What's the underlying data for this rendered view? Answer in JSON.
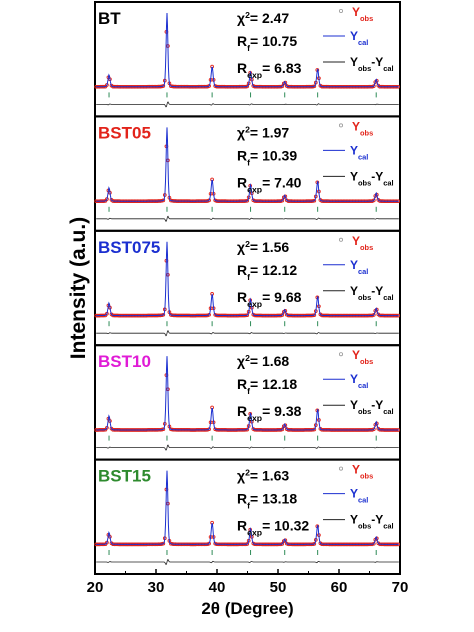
{
  "chart_data": {
    "type": "line",
    "xlabel": "2θ (Degree)",
    "ylabel": "Intensity (a.u.)",
    "xlim": [
      20,
      70
    ],
    "x_ticks": [
      "20",
      "30",
      "40",
      "50",
      "60",
      "70"
    ],
    "legend": [
      "Yobs",
      "Ycal",
      "Yobs-Ycal"
    ],
    "colors": {
      "obs": "#e2231a",
      "cal": "#1b2fd0",
      "diff": "#222222",
      "bragg": "#2e8b57",
      "BT": "#000000",
      "BST05": "#e2231a",
      "BST075": "#1b2fd0",
      "BST10": "#e01bd6",
      "BST15": "#2e8b2e"
    },
    "peak_positions_2theta": [
      22.3,
      31.8,
      39.2,
      45.5,
      51.1,
      56.5,
      66.1
    ],
    "panels": [
      {
        "name": "BT",
        "chi2": "2.47",
        "rf": "10.75",
        "rexp": "6.83",
        "peak_heights": [
          0.16,
          1.0,
          0.27,
          0.2,
          0.07,
          0.24,
          0.1
        ]
      },
      {
        "name": "BST05",
        "chi2": "1.97",
        "rf": "10.39",
        "rexp": "7.40",
        "peak_heights": [
          0.18,
          1.0,
          0.29,
          0.22,
          0.08,
          0.27,
          0.11
        ]
      },
      {
        "name": "BST075",
        "chi2": "1.56",
        "rf": "12.12",
        "rexp": "9.68",
        "peak_heights": [
          0.17,
          1.0,
          0.29,
          0.22,
          0.08,
          0.26,
          0.1
        ]
      },
      {
        "name": "BST10",
        "chi2": "1.68",
        "rf": "12.18",
        "rexp": "9.38",
        "peak_heights": [
          0.19,
          1.0,
          0.3,
          0.23,
          0.08,
          0.28,
          0.11
        ]
      },
      {
        "name": "BST15",
        "chi2": "1.63",
        "rf": "13.18",
        "rexp": "10.32",
        "peak_heights": [
          0.16,
          1.0,
          0.29,
          0.21,
          0.07,
          0.26,
          0.1
        ]
      }
    ]
  }
}
